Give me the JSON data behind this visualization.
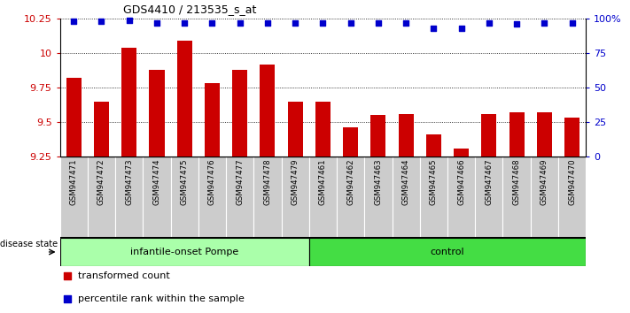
{
  "title": "GDS4410 / 213535_s_at",
  "categories": [
    "GSM947471",
    "GSM947472",
    "GSM947473",
    "GSM947474",
    "GSM947475",
    "GSM947476",
    "GSM947477",
    "GSM947478",
    "GSM947479",
    "GSM947461",
    "GSM947462",
    "GSM947463",
    "GSM947464",
    "GSM947465",
    "GSM947466",
    "GSM947467",
    "GSM947468",
    "GSM947469",
    "GSM947470"
  ],
  "bar_values": [
    9.82,
    9.65,
    10.04,
    9.88,
    10.09,
    9.78,
    9.88,
    9.92,
    9.65,
    9.65,
    9.46,
    9.55,
    9.56,
    9.41,
    9.31,
    9.56,
    9.57,
    9.57,
    9.53
  ],
  "percentile_values": [
    98,
    98,
    99,
    97,
    97,
    97,
    97,
    97,
    97,
    97,
    97,
    97,
    97,
    93,
    93,
    97,
    96,
    97,
    97
  ],
  "bar_color": "#cc0000",
  "percentile_color": "#0000cc",
  "ylim_left": [
    9.25,
    10.25
  ],
  "yticks_left": [
    9.25,
    9.5,
    9.75,
    10.0,
    10.25
  ],
  "ylim_right": [
    0,
    100
  ],
  "yticks_right": [
    0,
    25,
    50,
    75,
    100
  ],
  "ytick_labels_right": [
    "0",
    "25",
    "50",
    "75",
    "100%"
  ],
  "group1_label": "infantile-onset Pompe",
  "group2_label": "control",
  "group1_count": 9,
  "group2_count": 10,
  "disease_state_label": "disease state",
  "legend_bar_label": "transformed count",
  "legend_dot_label": "percentile rank within the sample",
  "grid_color": "#888888",
  "bar_bottom": 9.25,
  "group1_color": "#aaffaa",
  "group2_color": "#44dd44",
  "cell_bg": "#cccccc",
  "cell_line": "#aaaaaa"
}
